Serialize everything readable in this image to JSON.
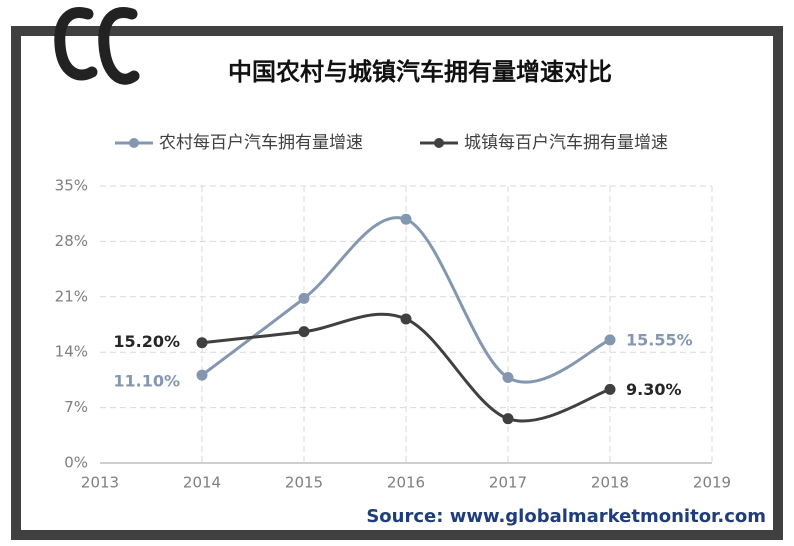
{
  "chart_data": {
    "type": "line",
    "title": "中国农村与城镇汽车拥有量增速对比",
    "x": [
      2014,
      2015,
      2016,
      2017,
      2018
    ],
    "series": [
      {
        "name": "农村每百户汽车拥有量增速",
        "color": "#8497b0",
        "values": [
          11.1,
          20.8,
          30.8,
          10.8,
          15.55
        ],
        "value_labels": [
          "11.10%",
          null,
          null,
          null,
          "15.55%"
        ]
      },
      {
        "name": "城镇每百户汽车拥有量增速",
        "color": "#404040",
        "values": [
          15.2,
          16.6,
          18.2,
          5.6,
          9.3
        ],
        "value_labels": [
          "15.20%",
          null,
          null,
          null,
          "9.30%"
        ]
      }
    ],
    "xlim": [
      2013,
      2019
    ],
    "xticks": [
      2013,
      2014,
      2015,
      2016,
      2017,
      2018,
      2019
    ],
    "ylim": [
      0,
      35
    ],
    "yticks": [
      {
        "value": 0,
        "label": "0%"
      },
      {
        "value": 7,
        "label": "7%"
      },
      {
        "value": 14,
        "label": "14%"
      },
      {
        "value": 21,
        "label": "21%"
      },
      {
        "value": 28,
        "label": "28%"
      },
      {
        "value": 35,
        "label": "35%"
      }
    ],
    "grid": true,
    "legend": "top",
    "source": "Source: www.globalmarketmonitor.com"
  }
}
